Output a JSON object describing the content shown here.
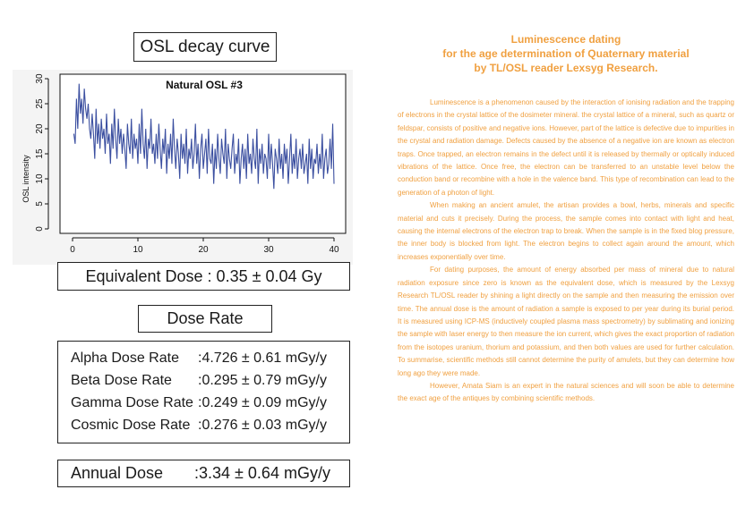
{
  "left_panel": {
    "title": "OSL decay curve",
    "equivalent_dose": "Equivalent Dose : 0.35 ± 0.04 Gy",
    "dose_rate_title": "Dose Rate",
    "dose_rates": [
      {
        "label": "Alpha Dose Rate",
        "value": ":4.726 ± 0.61  mGy/y"
      },
      {
        "label": "Beta Dose Rate",
        "value": ":0.295 ± 0.79  mGy/y"
      },
      {
        "label": "Gamma Dose Rate",
        "value": ":0.249 ± 0.09  mGy/y"
      },
      {
        "label": "Cosmic Dose Rate",
        "value": ":0.276 ± 0.03  mGy/y"
      }
    ],
    "annual_dose_label": "Annual Dose",
    "annual_dose_value": ":3.34 ± 0.64 mGy/y"
  },
  "chart_data": {
    "type": "line",
    "title": "Natural OSL #3",
    "xlabel": "",
    "ylabel": "OSL intensity",
    "xlim": [
      0,
      40
    ],
    "ylim": [
      0,
      30
    ],
    "xticks": [
      0,
      10,
      20,
      30,
      40
    ],
    "yticks": [
      0,
      5,
      10,
      15,
      20,
      25,
      30
    ],
    "grid": false,
    "line_color": "#3b4fa0",
    "series": [
      {
        "x_start": 0.2,
        "x_step": 0.2,
        "values": [
          19,
          17,
          26,
          20,
          29,
          23,
          26,
          21,
          28,
          24,
          22,
          25,
          20,
          18,
          23,
          19,
          14,
          24,
          17,
          21,
          16,
          22,
          18,
          20,
          15,
          23,
          17,
          19,
          13,
          21,
          16,
          24,
          18,
          14,
          22,
          17,
          20,
          15,
          19,
          16,
          12,
          21,
          17,
          15,
          22,
          14,
          19,
          16,
          18,
          13,
          21,
          15,
          24,
          17,
          14,
          20,
          12,
          18,
          16,
          22,
          15,
          17,
          13,
          19,
          14,
          21,
          16,
          12,
          18,
          15,
          20,
          11,
          17,
          14,
          19,
          13,
          22,
          16,
          12,
          18,
          15,
          10,
          19,
          14,
          17,
          13,
          20,
          11,
          16,
          14,
          18,
          12,
          15,
          21,
          13,
          17,
          10,
          16,
          19,
          12,
          15,
          18,
          11,
          20,
          14,
          13,
          17,
          9,
          16,
          12,
          19,
          14,
          11,
          18,
          15,
          13,
          20,
          10,
          17,
          14,
          12,
          16,
          19,
          11,
          15,
          13,
          18,
          9,
          14,
          17,
          12,
          16,
          10,
          19,
          13,
          15,
          11,
          18,
          14,
          12,
          20,
          9,
          16,
          13,
          17,
          11,
          15,
          14,
          10,
          19,
          12,
          17,
          13,
          8,
          16,
          14,
          11,
          18,
          12,
          15,
          10,
          17,
          13,
          16,
          9,
          14,
          19,
          11,
          15,
          12,
          18,
          10,
          14,
          16,
          12,
          17,
          11,
          13,
          15,
          9,
          18,
          12,
          16,
          10,
          14,
          13,
          17,
          11,
          15,
          12,
          19,
          10,
          14,
          16,
          11,
          13,
          18,
          12,
          21,
          9
        ]
      }
    ]
  },
  "article": {
    "title_lines": [
      "Luminescence dating",
      "for the age determination of Quaternary material",
      "by TL/OSL reader Lexsyg Research."
    ],
    "paragraphs": [
      "Luminescence is a phenomenon caused by the interaction of ionising radiation and the trapping of electrons in the crystal lattice of the dosimeter mineral. the crystal lattice of a mineral, such as quartz or feldspar, consists of positive and negative ions. However, part of the lattice is defective due to impurities in the crystal and radiation damage. Defects caused by the absence of a negative ion are known as electron traps. Once trapped, an electron remains in the defect until it is released by thermally or optically induced vibrations of the lattice. Once free, the electron can be transferred to an unstable level below the conduction band or recombine with a hole in the valence band. This type of recombination can lead to the generation of a photon of light.",
      "When making an ancient amulet, the artisan provides a bowl, herbs, minerals and specific material and cuts it precisely. During the process, the sample comes into contact with light and heat, causing the internal electrons of the electron trap to break. When the sample is in the fixed blog pressure, the inner body is blocked from light. The electron begins to collect again around the amount, which increases exponentially over time.",
      "For dating purposes, the amount of energy absorbed per mass of mineral due to natural radiation exposure since zero is known as the equivalent dose, which is measured by the Lexsyg Research TL/OSL reader by shining a light directly on the sample and then measuring the emission over time. The annual dose is the amount of radiation a sample is exposed to per year during its burial period. It is measured using ICP-MS (inductively coupled plasma mass spectrometry) by sublimating and ionizing the sample with laser energy to then measure the ion current, which gives the exact proportion of radiation from the isotopes uranium, thorium and potassium, and then both values are used for further calculation. To summarise, scientific methods still cannot determine the purity of amulets, but they can determine how long ago they were made.",
      "However, Amata Siam is an expert in the natural sciences and will soon be able to determine the exact age of the antiques by combining scientific methods."
    ]
  }
}
